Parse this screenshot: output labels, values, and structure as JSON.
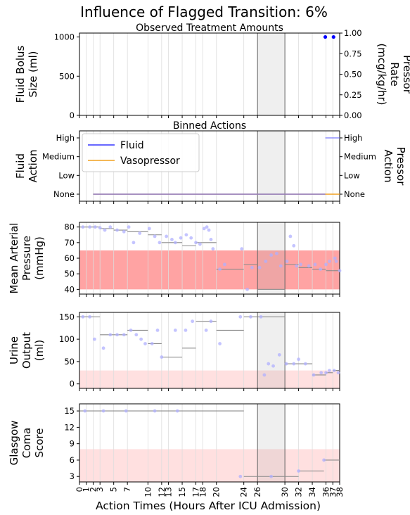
{
  "chart_data": {
    "title": "Influence of Flagged Transition: 6%",
    "xlabel": "Action Times (Hours After ICU Admission)",
    "x_ticks": [
      0,
      1,
      2,
      3,
      5,
      7,
      10,
      12,
      13,
      15,
      17,
      18,
      20,
      24,
      26,
      30,
      32,
      34,
      36,
      37,
      38
    ],
    "x_tick_labels": [
      "0",
      "1",
      "2",
      "3",
      "5",
      "7",
      "10",
      "12",
      "13",
      "15",
      "17",
      "18",
      "20",
      "24",
      "26",
      "30",
      "32",
      "34",
      "36",
      "37",
      "38"
    ],
    "xlim": [
      0,
      38
    ],
    "highlight_window": [
      26,
      30
    ],
    "panels": [
      {
        "type": "scatter",
        "title": "Observed Treatment Amounts",
        "ylabel_left": [
          "Fluid Bolus",
          "Size (ml)"
        ],
        "ylabel_right": [
          "Pressor",
          "Rate",
          "(mcg/kg/hr)"
        ],
        "ylim_left": [
          0,
          1050
        ],
        "ylim_right": [
          0,
          1.0
        ],
        "yticks_left": [
          0,
          500,
          1000
        ],
        "yticks_left_labels": [
          "0",
          "500",
          "1000"
        ],
        "yticks_right": [
          0,
          0.25,
          0.5,
          0.75,
          1.0
        ],
        "yticks_right_labels": [
          "0.00",
          "0.25",
          "0.50",
          "0.75",
          "1.00"
        ],
        "fluid_points": [
          [
            35.9,
            1000
          ],
          [
            37.1,
            1000
          ]
        ],
        "fluid_color": "#0000ff"
      },
      {
        "type": "step",
        "title": "Binned Actions",
        "ylabel_left": [
          "Fluid",
          "Action"
        ],
        "ylabel_right": [
          "Pressor",
          "Action"
        ],
        "levels": [
          "None",
          "Low",
          "Medium",
          "High"
        ],
        "legend": [
          "Fluid",
          "Vasopressor"
        ],
        "fluid_color": "#6b6bff",
        "vaso_color": "#f0a020",
        "fluid_segments": [
          [
            2,
            35.9,
            0
          ],
          [
            35.9,
            38,
            3
          ]
        ],
        "vaso_segments": [
          [
            2,
            38,
            0
          ]
        ]
      },
      {
        "type": "scatter",
        "ylabel": [
          "Mean Arterial",
          "Pressure",
          "(mmHg)"
        ],
        "ylim": [
          37,
          83
        ],
        "yticks": [
          40,
          50,
          60,
          70,
          80
        ],
        "yticks_labels": [
          "40",
          "50",
          "60",
          "70",
          "80"
        ],
        "band": [
          40,
          65
        ],
        "band_color": "#ff9999",
        "band_opacity": 0.9,
        "points": [
          [
            0.5,
            80
          ],
          [
            1.5,
            80
          ],
          [
            2.3,
            80
          ],
          [
            3.0,
            79.5
          ],
          [
            3.7,
            78
          ],
          [
            4.5,
            80
          ],
          [
            5.5,
            78
          ],
          [
            6.5,
            77
          ],
          [
            7.2,
            80
          ],
          [
            7.9,
            70
          ],
          [
            8.8,
            76
          ],
          [
            10.2,
            79
          ],
          [
            11.0,
            74
          ],
          [
            11.7,
            70
          ],
          [
            12.7,
            74
          ],
          [
            13.5,
            72
          ],
          [
            14.0,
            70
          ],
          [
            14.8,
            73
          ],
          [
            15.6,
            75
          ],
          [
            16.3,
            73
          ],
          [
            17.0,
            70
          ],
          [
            17.6,
            69
          ],
          [
            18.2,
            79
          ],
          [
            18.6,
            80
          ],
          [
            18.9,
            78
          ],
          [
            19.2,
            72
          ],
          [
            19.5,
            66
          ],
          [
            20.5,
            53
          ],
          [
            21.2,
            56
          ],
          [
            23.7,
            66
          ],
          [
            24.5,
            40
          ],
          [
            25.2,
            54
          ],
          [
            26.3,
            54
          ],
          [
            27.2,
            58
          ],
          [
            28.0,
            62
          ],
          [
            28.8,
            63
          ],
          [
            29.4,
            55
          ],
          [
            30.3,
            58
          ],
          [
            30.8,
            74
          ],
          [
            31.3,
            68
          ],
          [
            31.7,
            55
          ],
          [
            32.3,
            56
          ],
          [
            33.5,
            55
          ],
          [
            34.4,
            56
          ],
          [
            35.2,
            53
          ],
          [
            36.0,
            56
          ],
          [
            36.5,
            58
          ],
          [
            37.3,
            60
          ],
          [
            37.5,
            58
          ],
          [
            38.0,
            52
          ]
        ],
        "medians": [
          [
            0,
            2,
            80
          ],
          [
            2,
            3,
            80
          ],
          [
            3,
            5,
            79
          ],
          [
            5,
            7,
            78
          ],
          [
            7,
            10,
            77
          ],
          [
            10,
            12,
            75
          ],
          [
            12,
            13,
            70
          ],
          [
            13,
            15,
            70
          ],
          [
            15,
            17,
            68
          ],
          [
            17,
            18,
            70
          ],
          [
            18,
            20,
            70
          ],
          [
            20,
            24,
            53
          ],
          [
            24,
            26,
            56
          ],
          [
            26,
            30,
            40
          ],
          [
            30,
            32,
            56
          ],
          [
            32,
            34,
            54
          ],
          [
            34,
            36,
            53
          ],
          [
            36,
            37,
            52
          ],
          [
            37,
            38,
            52
          ]
        ]
      },
      {
        "type": "scatter",
        "ylabel": [
          "Urine",
          "Output",
          "(ml)"
        ],
        "ylim": [
          -10,
          160
        ],
        "yticks": [
          0,
          50,
          100,
          150
        ],
        "yticks_labels": [
          "0",
          "50",
          "100",
          "150"
        ],
        "band": [
          -10,
          30
        ],
        "band_color": "#ffe0e0",
        "band_opacity": 1.0,
        "points": [
          [
            0.5,
            150
          ],
          [
            1.5,
            150
          ],
          [
            2.2,
            100
          ],
          [
            3.5,
            80
          ],
          [
            4.5,
            110
          ],
          [
            5.5,
            110
          ],
          [
            6.5,
            110
          ],
          [
            7.5,
            120
          ],
          [
            8.3,
            110
          ],
          [
            9.0,
            100
          ],
          [
            9.6,
            90
          ],
          [
            10.6,
            90
          ],
          [
            11.4,
            120
          ],
          [
            12.0,
            60
          ],
          [
            14.0,
            120
          ],
          [
            15.5,
            120
          ],
          [
            16.5,
            140
          ],
          [
            18.5,
            120
          ],
          [
            19.2,
            140
          ],
          [
            20.5,
            90
          ],
          [
            23.5,
            150
          ],
          [
            25.0,
            150
          ],
          [
            26.5,
            150
          ],
          [
            27.0,
            20
          ],
          [
            27.6,
            45
          ],
          [
            28.3,
            40
          ],
          [
            29.2,
            65
          ],
          [
            30.2,
            45
          ],
          [
            31.3,
            45
          ],
          [
            32.0,
            55
          ],
          [
            33.0,
            45
          ],
          [
            34.2,
            20
          ],
          [
            35.3,
            25
          ],
          [
            36.0,
            25
          ],
          [
            36.5,
            30
          ],
          [
            37.2,
            30
          ],
          [
            37.8,
            25
          ]
        ],
        "medians": [
          [
            0,
            2,
            150
          ],
          [
            2,
            3,
            150
          ],
          [
            3,
            5,
            110
          ],
          [
            5,
            7,
            110
          ],
          [
            7,
            10,
            120
          ],
          [
            10,
            12,
            90
          ],
          [
            12,
            13,
            60
          ],
          [
            13,
            15,
            60
          ],
          [
            15,
            17,
            80
          ],
          [
            17,
            18,
            140
          ],
          [
            18,
            20,
            140
          ],
          [
            20,
            24,
            120
          ],
          [
            24,
            26,
            150
          ],
          [
            26,
            30,
            150
          ],
          [
            30,
            32,
            45
          ],
          [
            32,
            34,
            45
          ],
          [
            34,
            36,
            20
          ],
          [
            36,
            37,
            25
          ],
          [
            37,
            38,
            30
          ]
        ]
      },
      {
        "type": "scatter",
        "ylabel": [
          "Glasgow",
          "Coma",
          "Score"
        ],
        "ylim": [
          2,
          16.3
        ],
        "yticks": [
          3,
          6,
          9,
          12,
          15
        ],
        "yticks_labels": [
          "3",
          "6",
          "9",
          "12",
          "15"
        ],
        "band": [
          2,
          8
        ],
        "band_color": "#ffe0e0",
        "band_opacity": 1.0,
        "points": [
          [
            0.8,
            15
          ],
          [
            3.5,
            15
          ],
          [
            6.8,
            15
          ],
          [
            11.0,
            15
          ],
          [
            14.3,
            15
          ],
          [
            23.5,
            3
          ],
          [
            28.0,
            3
          ],
          [
            32.0,
            4
          ],
          [
            35.7,
            6
          ]
        ],
        "medians": [
          [
            0,
            24,
            15
          ],
          [
            24,
            32,
            3
          ],
          [
            32,
            35.7,
            4
          ],
          [
            35.7,
            38,
            6
          ]
        ]
      }
    ]
  }
}
